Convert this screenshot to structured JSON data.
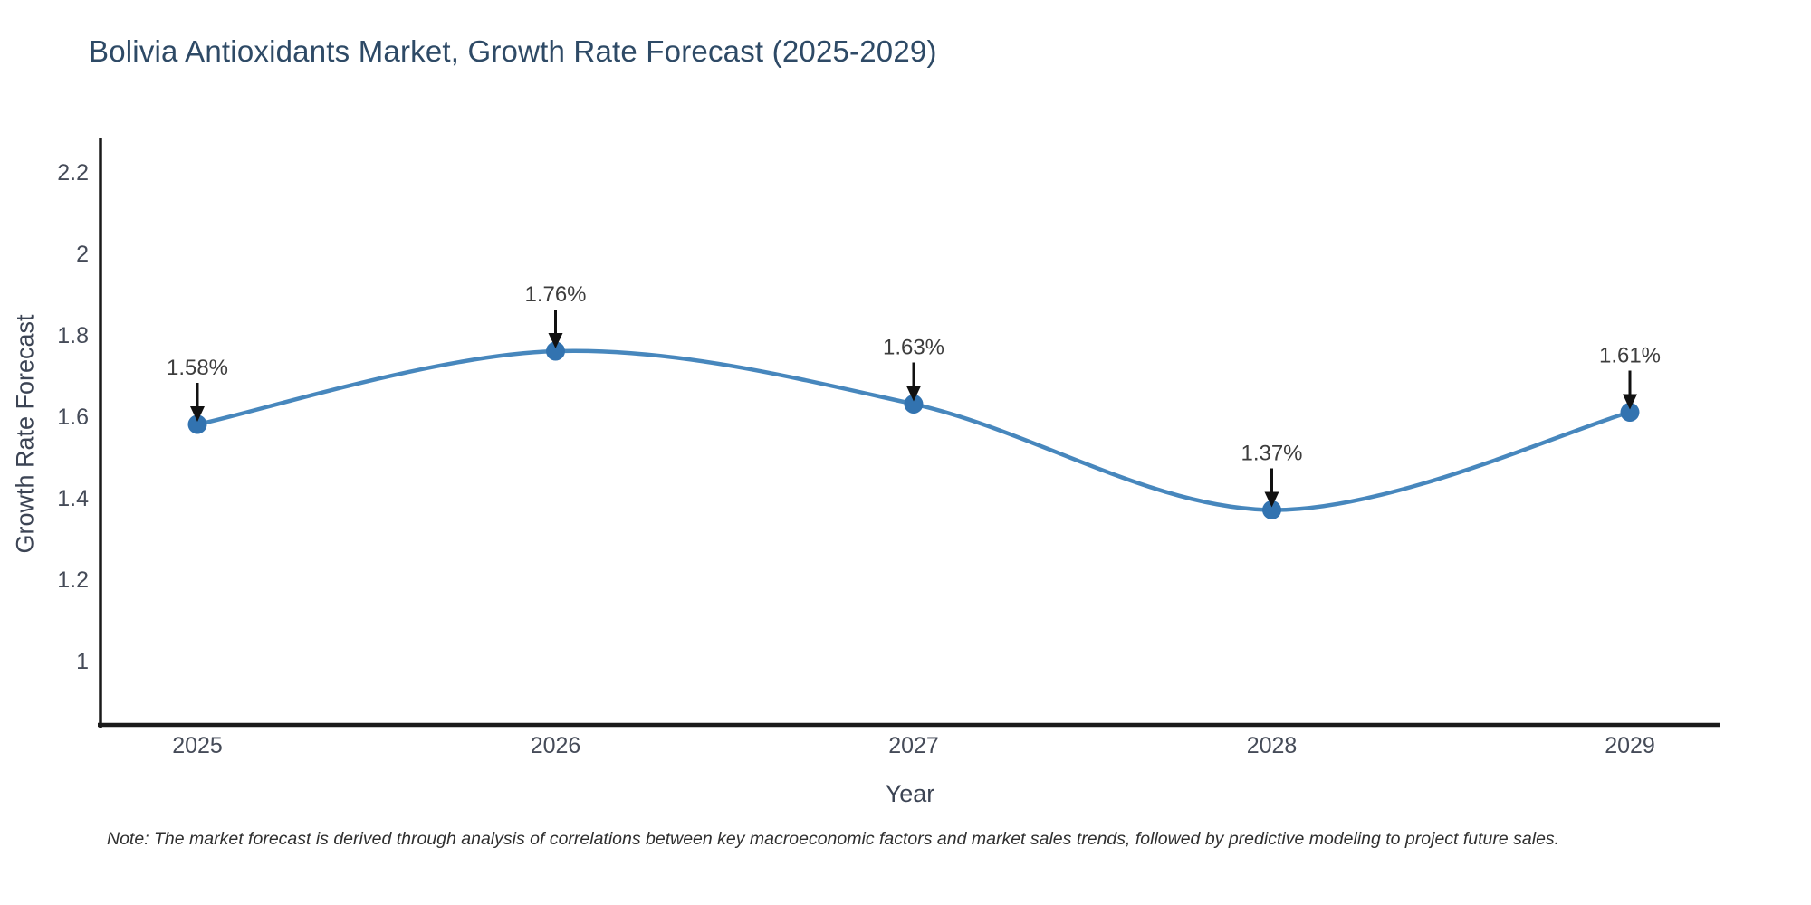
{
  "title": "Bolivia Antioxidants Market, Growth Rate Forecast (2025-2029)",
  "note": "Note: The market forecast is derived through analysis of correlations between key macroeconomic factors and market sales trends, followed by predictive modeling to project future sales.",
  "chart_data": {
    "type": "line",
    "line_shape": "spline",
    "x": [
      2025,
      2026,
      2027,
      2028,
      2029
    ],
    "series": [
      {
        "name": "Growth Rate Forecast",
        "values": [
          1.58,
          1.76,
          1.63,
          1.37,
          1.61
        ]
      }
    ],
    "point_labels": [
      "1.58%",
      "1.76%",
      "1.63%",
      "1.37%",
      "1.61%"
    ],
    "title": "Bolivia Antioxidants Market, Growth Rate Forecast (2025-2029)",
    "xlabel": "Year",
    "ylabel": "Growth Rate Forecast",
    "xticks": [
      "2025",
      "2026",
      "2027",
      "2028",
      "2029"
    ],
    "yticks": [
      1,
      1.2,
      1.4,
      1.6,
      1.8,
      2,
      2.2
    ],
    "ylim": [
      0.84,
      2.285
    ],
    "grid": false,
    "legend": "none",
    "annotations": "black arrows pointing down to each data point with percentage labels",
    "colors": {
      "line": "#4787bd",
      "marker": "#3273b0",
      "arrow": "#111111",
      "axis": "#1a1a1a",
      "title": "#2e4a66",
      "tick_label": "#454b58",
      "axis_title": "#3c4454",
      "annotation_label": "#3d3d3d",
      "note": "#2f2f2f",
      "background": "#ffffff"
    }
  }
}
